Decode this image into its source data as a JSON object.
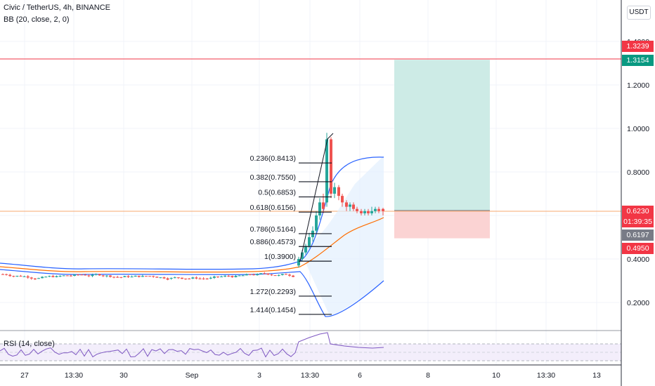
{
  "header": {
    "symbol": "Civic / TetherUS, 4h, BINANCE",
    "indicator": "BB (20, close, 2, 0)",
    "currency_button": "USDT"
  },
  "price_axis": {
    "ticks": [
      "1.4000",
      "1.2000",
      "1.0000",
      "0.8000",
      "0.4000",
      "0.2000"
    ],
    "badges": [
      {
        "key": "target_high",
        "value": "1.3239",
        "color": "#f23645"
      },
      {
        "key": "target",
        "value": "1.3154",
        "color": "#089981"
      },
      {
        "key": "last",
        "value": "0.6230",
        "color": "#f23645"
      },
      {
        "key": "countdown",
        "value": "01:39:35",
        "color": "#f23645"
      },
      {
        "key": "bb_basis",
        "value": "0.6197",
        "color": "#787b86"
      },
      {
        "key": "stop",
        "value": "0.4950",
        "color": "#f23645"
      }
    ]
  },
  "time_axis": {
    "ticks": [
      "27",
      "13:30",
      "30",
      "Sep",
      "3",
      "13:30",
      "6",
      "8",
      "10",
      "13:30",
      "13"
    ]
  },
  "fibonacci": {
    "levels": [
      {
        "ratio": 0.236,
        "label": "0.236(0.8413)",
        "price": 0.8413
      },
      {
        "ratio": 0.382,
        "label": "0.382(0.7550)",
        "price": 0.755
      },
      {
        "ratio": 0.5,
        "label": "0.5(0.6853)",
        "price": 0.6853
      },
      {
        "ratio": 0.618,
        "label": "0.618(0.6156)",
        "price": 0.6156
      },
      {
        "ratio": 0.786,
        "label": "0.786(0.5164)",
        "price": 0.5164
      },
      {
        "ratio": 0.886,
        "label": "0.886(0.4573)",
        "price": 0.4573
      },
      {
        "ratio": 1,
        "label": "1(0.3900)",
        "price": 0.39
      },
      {
        "ratio": 1.272,
        "label": "1.272(0.2293)",
        "price": 0.2293
      },
      {
        "ratio": 1.414,
        "label": "1.414(0.1454)",
        "price": 0.1454
      }
    ]
  },
  "position": {
    "entry": 0.623,
    "target": 1.3154,
    "stop": 0.495
  },
  "rsi": {
    "label": "RSI (14, close)"
  },
  "colors": {
    "up": "#26a69a",
    "down": "#ef5350",
    "bb_band": "#2962ff",
    "bb_basis": "#ff6d00",
    "profit_zone": "#cdebe6",
    "loss_zone": "#fbd3d3",
    "rsi_line": "#7e57c2",
    "grid": "#f0f3fa"
  }
}
